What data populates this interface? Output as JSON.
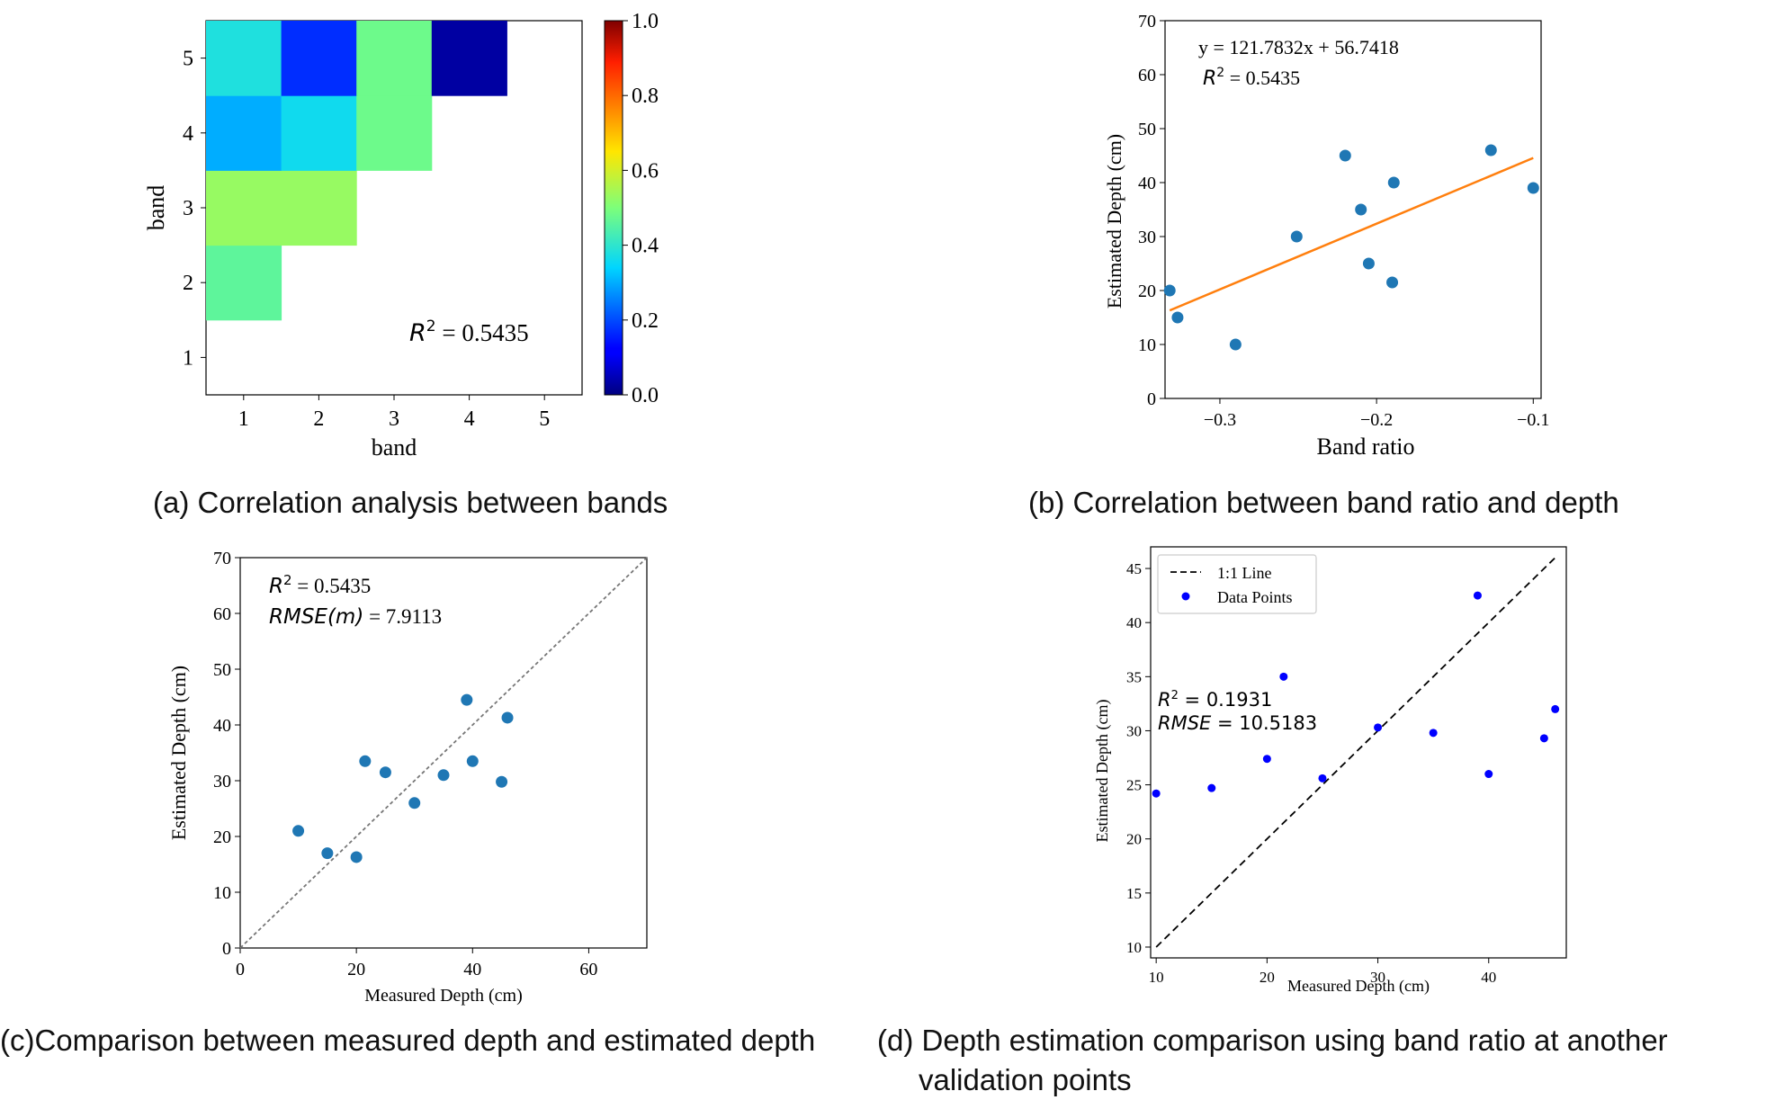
{
  "chart_data": [
    {
      "type": "heatmap",
      "panel": "a",
      "xlabel": "band",
      "ylabel": "band",
      "x_ticks": [
        "1",
        "2",
        "3",
        "4",
        "5"
      ],
      "y_ticks": [
        "1",
        "2",
        "3",
        "4",
        "5"
      ],
      "colorbar_ticks": [
        "0.0",
        "0.2",
        "0.4",
        "0.6",
        "0.8",
        "1.0"
      ],
      "colorbar_range": [
        0,
        1
      ],
      "cells": [
        {
          "x": 1,
          "y": 2,
          "value": 0.46
        },
        {
          "x": 1,
          "y": 3,
          "value": 0.53
        },
        {
          "x": 2,
          "y": 3,
          "value": 0.53
        },
        {
          "x": 1,
          "y": 4,
          "value": 0.3
        },
        {
          "x": 2,
          "y": 4,
          "value": 0.36
        },
        {
          "x": 3,
          "y": 4,
          "value": 0.48
        },
        {
          "x": 1,
          "y": 5,
          "value": 0.38
        },
        {
          "x": 2,
          "y": 5,
          "value": 0.17
        },
        {
          "x": 3,
          "y": 5,
          "value": 0.48
        },
        {
          "x": 4,
          "y": 5,
          "value": 0.03
        }
      ],
      "annotation": {
        "r2_label": "R",
        "r2_value": " = 0.5435"
      },
      "caption": "(a) Correlation analysis between bands"
    },
    {
      "type": "scatter",
      "panel": "b",
      "xlabel": "Band ratio",
      "ylabel": "Estimated Depth (cm)",
      "xlim": [
        -0.335,
        -0.095
      ],
      "ylim": [
        0,
        70
      ],
      "x_ticks": [
        {
          "v": -0.3,
          "label": "−0.3"
        },
        {
          "v": -0.2,
          "label": "−0.2"
        },
        {
          "v": -0.1,
          "label": "−0.1"
        }
      ],
      "y_ticks": [
        0,
        10,
        20,
        30,
        40,
        50,
        60,
        70
      ],
      "points": [
        [
          -0.332,
          20
        ],
        [
          -0.327,
          15
        ],
        [
          -0.29,
          10
        ],
        [
          -0.251,
          30
        ],
        [
          -0.22,
          45
        ],
        [
          -0.21,
          35
        ],
        [
          -0.205,
          25
        ],
        [
          -0.189,
          40
        ],
        [
          -0.19,
          21.5
        ],
        [
          -0.127,
          46
        ],
        [
          -0.1,
          39
        ]
      ],
      "fit_line": {
        "slope": 121.7832,
        "intercept": 56.7418,
        "x_range": [
          -0.332,
          -0.1
        ]
      },
      "annotation": {
        "equation": "y = 121.7832x + 56.7418",
        "r2_label": "R",
        "r2_value": " = 0.5435"
      },
      "caption": "(b) Correlation between band ratio and depth"
    },
    {
      "type": "scatter",
      "panel": "c",
      "xlabel": "Measured Depth (cm)",
      "ylabel": "Estimated Depth (cm)",
      "xlim": [
        0,
        70
      ],
      "ylim": [
        0,
        70
      ],
      "x_ticks": [
        0,
        20,
        40,
        60
      ],
      "y_ticks": [
        0,
        10,
        20,
        30,
        40,
        50,
        60,
        70
      ],
      "points": [
        [
          10,
          21
        ],
        [
          15,
          17
        ],
        [
          20,
          16.3
        ],
        [
          21.5,
          33.5
        ],
        [
          25,
          31.5
        ],
        [
          30,
          26
        ],
        [
          35,
          31
        ],
        [
          39,
          44.5
        ],
        [
          40,
          33.5
        ],
        [
          45,
          29.8
        ],
        [
          46,
          41.3
        ]
      ],
      "identity_line": true,
      "annotation": {
        "r2_label": "R",
        "r2_value": " = 0.5435",
        "rmse_label": "RMSE(m)",
        "rmse_value": " = 7.9113"
      },
      "caption": "(c)Comparison between measured depth and estimated depth"
    },
    {
      "type": "scatter",
      "panel": "d",
      "xlabel": "Measured Depth (cm)",
      "ylabel": "Estimated Depth (cm)",
      "xlim": [
        9.5,
        47
      ],
      "ylim": [
        9,
        47
      ],
      "x_ticks": [
        10,
        20,
        30,
        40
      ],
      "y_ticks": [
        10,
        15,
        20,
        25,
        30,
        35,
        40,
        45
      ],
      "points": [
        [
          10,
          24.2
        ],
        [
          15,
          24.7
        ],
        [
          20,
          27.4
        ],
        [
          21.5,
          35
        ],
        [
          25,
          25.6
        ],
        [
          30,
          30.3
        ],
        [
          35,
          29.8
        ],
        [
          39,
          42.5
        ],
        [
          40,
          26
        ],
        [
          45,
          29.3
        ],
        [
          46,
          32
        ]
      ],
      "identity_line": {
        "from": 10,
        "to": 46
      },
      "legend": [
        "1:1 Line",
        "Data Points"
      ],
      "annotation": {
        "r2_label": "R",
        "r2_value": " = 0.1931",
        "rmse_label": "RMSE",
        "rmse_value": " = 10.5183"
      },
      "caption": "(d) Depth estimation comparison using band ratio at another validation points"
    }
  ]
}
